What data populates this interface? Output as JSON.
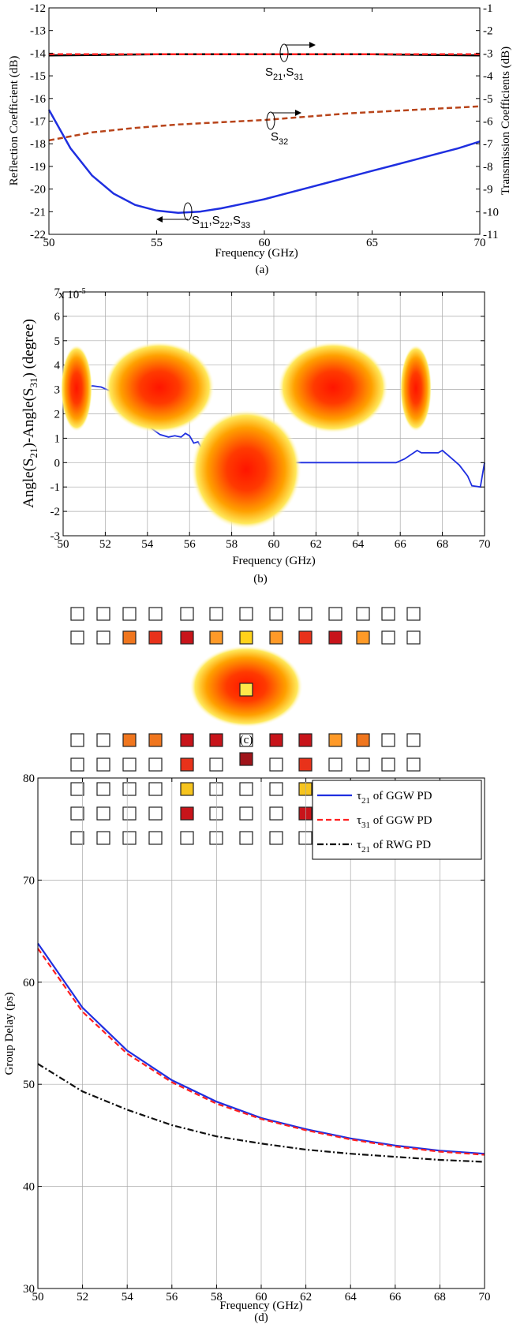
{
  "chart_data": [
    {
      "id": "a",
      "type": "line",
      "caption": "(a)",
      "xlabel": "Frequency (GHz)",
      "ylabel": "Reflection Coefficient (dB)",
      "ylabel_right": "Transmission Coefficients (dB)",
      "xlim": [
        50,
        70
      ],
      "ylim": [
        -22,
        -12
      ],
      "ylim_right": [
        -11,
        -1
      ],
      "xticks": [
        "50",
        "55",
        "60",
        "65",
        "70"
      ],
      "yticks": [
        "-22",
        "-21",
        "-20",
        "-19",
        "-18",
        "-17",
        "-16",
        "-15",
        "-14",
        "-13",
        "-12"
      ],
      "yticks_right": [
        "-11",
        "-10",
        "-9",
        "-8",
        "-7",
        "-6",
        "-5",
        "-4",
        "-3",
        "-2",
        "-1"
      ],
      "grid": false,
      "series": [
        {
          "axis": "left",
          "color": "#1f2fe0",
          "dash": "solid",
          "x": [
            50,
            51,
            52,
            53,
            54,
            55,
            56,
            57,
            58,
            59,
            60,
            61,
            62,
            63,
            64,
            65,
            66,
            67,
            68,
            69,
            70
          ],
          "y": [
            -16.5,
            -18.2,
            -19.4,
            -20.2,
            -20.7,
            -20.95,
            -21.05,
            -21.0,
            -20.85,
            -20.65,
            -20.45,
            -20.2,
            -19.95,
            -19.7,
            -19.45,
            -19.2,
            -18.95,
            -18.7,
            -18.45,
            -18.2,
            -17.9
          ]
        },
        {
          "axis": "right",
          "color": "#000000",
          "dash": "solid",
          "x": [
            50,
            55,
            60,
            65,
            70
          ],
          "y": [
            -3.1,
            -3.05,
            -3.05,
            -3.05,
            -3.1
          ]
        },
        {
          "axis": "right",
          "color": "#ff2020",
          "dash": "dashed",
          "x": [
            50,
            55,
            60,
            65,
            70
          ],
          "y": [
            -3.05,
            -3.05,
            -3.05,
            -3.05,
            -3.05
          ]
        },
        {
          "axis": "right",
          "color": "#b8441a",
          "dash": "dashed",
          "x": [
            50,
            52,
            54,
            56,
            58,
            60,
            62,
            64,
            66,
            68,
            70
          ],
          "y": [
            -6.85,
            -6.5,
            -6.3,
            -6.15,
            -6.05,
            -5.95,
            -5.8,
            -5.65,
            -5.55,
            -5.45,
            -5.35
          ]
        }
      ],
      "annotations": [
        "S21,S31",
        "S32",
        "S11,S22,S33"
      ]
    },
    {
      "id": "b",
      "type": "line",
      "caption": "(b)",
      "xlabel": "Frequency (GHz)",
      "ylabel": "Angle(S21)-Angle(S31) (degree)",
      "scale_label": "x 10-5",
      "xlim": [
        50,
        70
      ],
      "ylim": [
        -3,
        7
      ],
      "xticks": [
        "50",
        "52",
        "54",
        "56",
        "58",
        "60",
        "62",
        "64",
        "66",
        "68",
        "70"
      ],
      "yticks": [
        "-3",
        "-2",
        "-1",
        "0",
        "1",
        "2",
        "3",
        "4",
        "5",
        "6",
        "7"
      ],
      "grid": true,
      "series": [
        {
          "color": "#1f2fe0",
          "dash": "solid",
          "x": [
            50.2,
            50.6,
            51.0,
            51.4,
            51.8,
            52.2,
            52.6,
            53.0,
            53.4,
            53.8,
            54.2,
            54.6,
            55.0,
            55.3,
            55.6,
            55.8,
            56.0,
            56.2,
            56.4,
            56.6,
            56.8,
            57.0,
            57.2,
            57.4,
            57.6,
            58.0,
            58.2,
            60,
            62,
            64,
            65.8,
            66.2,
            66.8,
            67.0,
            67.4,
            67.8,
            68.0,
            68.4,
            68.8,
            69.2,
            69.4,
            69.8,
            70.0
          ],
          "y": [
            2.8,
            3.0,
            3.1,
            3.15,
            3.1,
            2.95,
            2.6,
            2.2,
            1.95,
            1.7,
            1.4,
            1.15,
            1.05,
            1.1,
            1.05,
            1.2,
            1.1,
            0.8,
            0.85,
            0.55,
            0.4,
            0.3,
            0.45,
            0.3,
            0.2,
            0.1,
            0.0,
            0.0,
            0.0,
            0.0,
            0.0,
            0.15,
            0.5,
            0.4,
            0.4,
            0.4,
            0.5,
            0.2,
            -0.1,
            -0.55,
            -0.95,
            -1.0,
            0.0
          ]
        }
      ]
    },
    {
      "id": "c",
      "type": "heatmap",
      "caption": "(c)"
    },
    {
      "id": "d",
      "type": "line",
      "caption": "(d)",
      "xlabel": "Frequency (GHz)",
      "ylabel": "Group Delay (ps)",
      "xlim": [
        50,
        70
      ],
      "ylim": [
        30,
        80
      ],
      "xticks": [
        "50",
        "52",
        "54",
        "56",
        "58",
        "60",
        "62",
        "64",
        "66",
        "68",
        "70"
      ],
      "yticks": [
        "30",
        "40",
        "50",
        "60",
        "70",
        "80"
      ],
      "grid": true,
      "legend": "top-right",
      "series": [
        {
          "name_sym": "τ",
          "name_sub": "21",
          "name_rest": " of GGW PD",
          "color": "#1f2fe0",
          "dash": "solid",
          "x": [
            50,
            52,
            54,
            56,
            58,
            60,
            62,
            64,
            66,
            68,
            70
          ],
          "y": [
            63.8,
            57.5,
            53.3,
            50.4,
            48.3,
            46.7,
            45.6,
            44.7,
            44.0,
            43.5,
            43.2
          ]
        },
        {
          "name_sym": "τ",
          "name_sub": "31",
          "name_rest": " of GGW PD",
          "color": "#ff2020",
          "dash": "dashed",
          "x": [
            50,
            52,
            54,
            56,
            58,
            60,
            62,
            64,
            66,
            68,
            70
          ],
          "y": [
            63.3,
            57.1,
            53.0,
            50.2,
            48.1,
            46.6,
            45.5,
            44.6,
            43.9,
            43.4,
            43.1
          ]
        },
        {
          "name_sym": "τ",
          "name_sub": "21",
          "name_rest": " of RWG PD",
          "color": "#111111",
          "dash": "dashdot",
          "x": [
            50,
            52,
            54,
            56,
            58,
            60,
            62,
            64,
            66,
            68,
            70
          ],
          "y": [
            52.0,
            49.3,
            47.5,
            46.0,
            44.9,
            44.2,
            43.6,
            43.2,
            42.9,
            42.6,
            42.4
          ]
        }
      ]
    }
  ]
}
